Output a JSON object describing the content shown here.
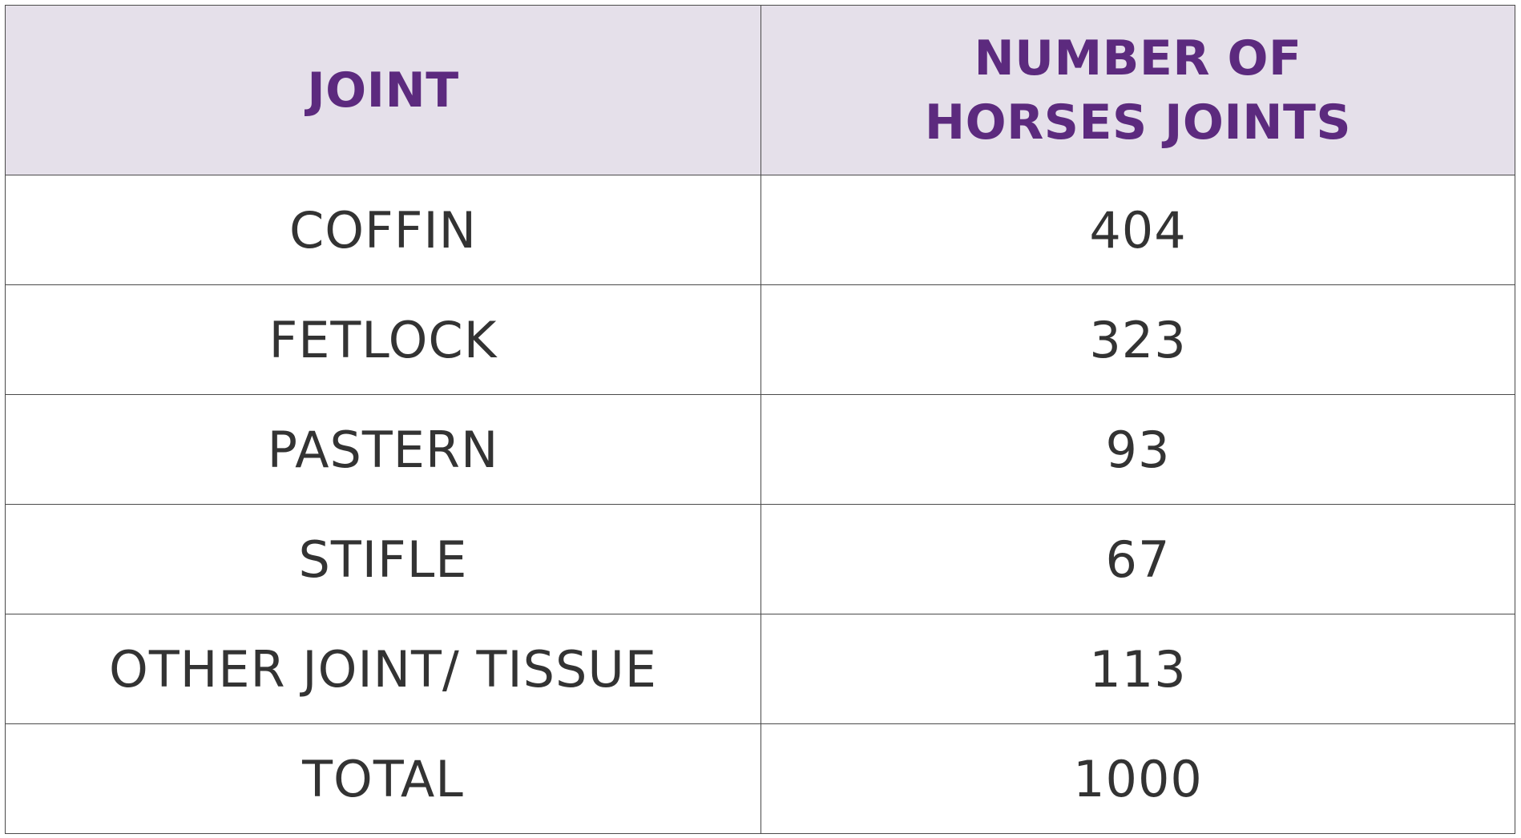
{
  "table": {
    "headers": {
      "joint": "JOINT",
      "count_line1": "NUMBER OF",
      "count_line2": "HORSES JOINTS"
    },
    "rows": [
      {
        "joint": "COFFIN",
        "count": "404"
      },
      {
        "joint": "FETLOCK",
        "count": "323"
      },
      {
        "joint": "PASTERN",
        "count": "93"
      },
      {
        "joint": "STIFLE",
        "count": "67"
      },
      {
        "joint": "OTHER JOINT/ TISSUE",
        "count": "113"
      },
      {
        "joint": "TOTAL",
        "count": "1000"
      }
    ]
  },
  "colors": {
    "header_bg": "#e5e0ea",
    "header_text": "#5c2a7e",
    "body_text": "#333333",
    "border": "#4a4a4a"
  }
}
